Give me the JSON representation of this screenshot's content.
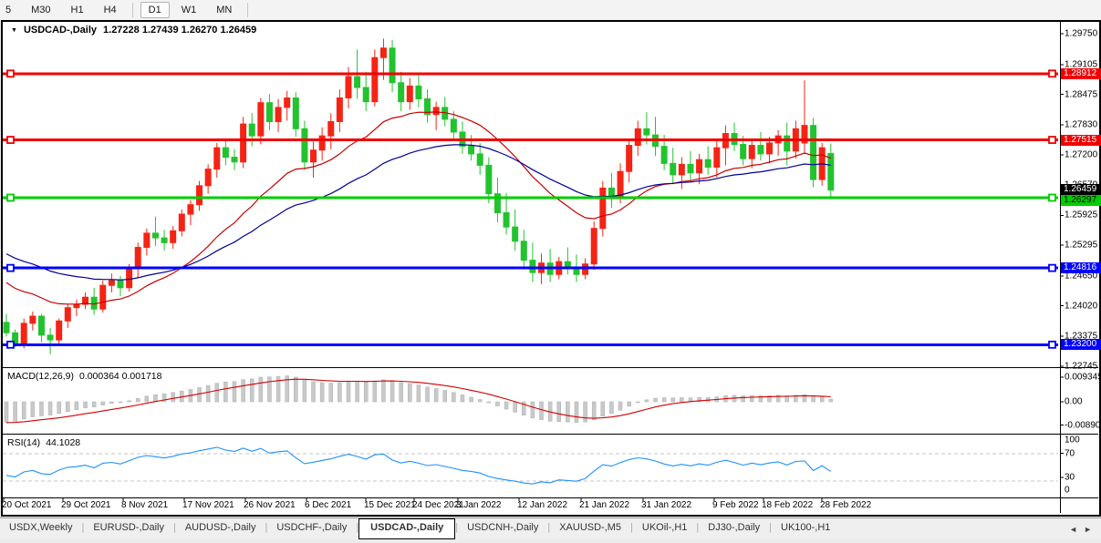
{
  "toolbar": {
    "items": [
      {
        "label": "5"
      },
      {
        "label": "M30"
      },
      {
        "label": "H1"
      },
      {
        "label": "H4"
      },
      {
        "sep": true
      },
      {
        "label": "D1",
        "active": true
      },
      {
        "label": "W1"
      },
      {
        "label": "MN"
      },
      {
        "sep": true
      }
    ]
  },
  "chart": {
    "menu_icon": "▼",
    "symbol": "USDCAD-,Daily",
    "ohlc": "1.27228 1.27439 1.26270 1.26459"
  },
  "chart_data": {
    "type": "candlestick",
    "symbol": "USDCAD-",
    "period": "Daily",
    "current_bar": {
      "open": 1.27228,
      "high": 1.27439,
      "low": 1.2627,
      "close": 1.26459
    },
    "up_color": "#f42415",
    "down_color": "#22c32e",
    "ma_fast_color": "#c80000",
    "ma_slow_color": "#000096",
    "price_ticks": [
      "1.29750",
      "1.29105",
      "1.28475",
      "1.27830",
      "1.27200",
      "1.26570",
      "1.25925",
      "1.25295",
      "1.24650",
      "1.24020",
      "1.23375",
      "1.22745"
    ],
    "hlines": [
      {
        "price": "1.28912",
        "color": "#f00000",
        "text_color": "#ffffff"
      },
      {
        "price": "1.27515",
        "color": "#f00000",
        "text_color": "#ffffff"
      },
      {
        "price": "1.26297",
        "color": "#00cc00",
        "text_color": "#000000"
      },
      {
        "price": "1.24816",
        "color": "#0000ff",
        "text_color": "#ffffff"
      },
      {
        "price": "1.23200",
        "color": "#0000ff",
        "text_color": "#ffffff"
      }
    ],
    "price_badge": {
      "price": "1.26459",
      "bg": "#000000",
      "text_color": "#ffffff"
    },
    "dates": [
      "20 Oct 2021",
      "29 Oct 2021",
      "8 Nov 2021",
      "17 Nov 2021",
      "26 Nov 2021",
      "6 Dec 2021",
      "15 Dec 2021",
      "24 Dec 2021",
      "3 Jan 2022",
      "12 Jan 2022",
      "21 Jan 2022",
      "31 Jan 2022",
      "9 Feb 2022",
      "18 Feb 2022",
      "28 Feb 2022"
    ],
    "candles": [
      [
        1.2367,
        1.2385,
        1.2337,
        1.2345
      ],
      [
        1.2345,
        1.2352,
        1.2315,
        1.2322
      ],
      [
        1.2322,
        1.2375,
        1.2312,
        1.2365
      ],
      [
        1.2365,
        1.239,
        1.235,
        1.238
      ],
      [
        1.238,
        1.2385,
        1.2325,
        1.234
      ],
      [
        1.234,
        1.2355,
        1.23,
        1.233
      ],
      [
        1.233,
        1.2375,
        1.232,
        1.237
      ],
      [
        1.237,
        1.2405,
        1.2355,
        1.2398
      ],
      [
        1.2398,
        1.2415,
        1.238,
        1.2405
      ],
      [
        1.2405,
        1.243,
        1.2395,
        1.242
      ],
      [
        1.242,
        1.244,
        1.2383,
        1.2395
      ],
      [
        1.2395,
        1.2455,
        1.2388,
        1.2445
      ],
      [
        1.2445,
        1.247,
        1.243,
        1.2455
      ],
      [
        1.2455,
        1.2465,
        1.2422,
        1.244
      ],
      [
        1.244,
        1.249,
        1.2432,
        1.248
      ],
      [
        1.248,
        1.2535,
        1.246,
        1.2525
      ],
      [
        1.2525,
        1.2565,
        1.2508,
        1.2555
      ],
      [
        1.2555,
        1.259,
        1.2528,
        1.2545
      ],
      [
        1.2545,
        1.2562,
        1.2518,
        1.2535
      ],
      [
        1.2535,
        1.257,
        1.2522,
        1.256
      ],
      [
        1.256,
        1.2605,
        1.2548,
        1.2595
      ],
      [
        1.2595,
        1.2625,
        1.2572,
        1.2615
      ],
      [
        1.2615,
        1.2665,
        1.2602,
        1.2655
      ],
      [
        1.2655,
        1.27,
        1.2638,
        1.269
      ],
      [
        1.269,
        1.2745,
        1.2672,
        1.2735
      ],
      [
        1.2735,
        1.2755,
        1.2698,
        1.2715
      ],
      [
        1.2715,
        1.2732,
        1.2688,
        1.2705
      ],
      [
        1.2705,
        1.28,
        1.2692,
        1.2785
      ],
      [
        1.2785,
        1.2808,
        1.2738,
        1.276
      ],
      [
        1.276,
        1.284,
        1.2742,
        1.283
      ],
      [
        1.283,
        1.2848,
        1.2772,
        1.279
      ],
      [
        1.279,
        1.2838,
        1.2768,
        1.282
      ],
      [
        1.282,
        1.2855,
        1.2792,
        1.284
      ],
      [
        1.284,
        1.2852,
        1.2758,
        1.2775
      ],
      [
        1.2775,
        1.2792,
        1.2688,
        1.2705
      ],
      [
        1.2705,
        1.2748,
        1.2672,
        1.273
      ],
      [
        1.273,
        1.2778,
        1.2708,
        1.276
      ],
      [
        1.276,
        1.2808,
        1.2732,
        1.279
      ],
      [
        1.279,
        1.2858,
        1.2768,
        1.284
      ],
      [
        1.284,
        1.2905,
        1.2818,
        1.2885
      ],
      [
        1.2885,
        1.2942,
        1.2838,
        1.2862
      ],
      [
        1.2862,
        1.2895,
        1.2812,
        1.2832
      ],
      [
        1.2832,
        1.2942,
        1.2822,
        1.2925
      ],
      [
        1.2925,
        1.2965,
        1.2878,
        1.2945
      ],
      [
        1.2945,
        1.2962,
        1.2852,
        1.2872
      ],
      [
        1.2872,
        1.2895,
        1.2812,
        1.2832
      ],
      [
        1.2832,
        1.2882,
        1.2815,
        1.2865
      ],
      [
        1.2865,
        1.2892,
        1.282,
        1.2838
      ],
      [
        1.2838,
        1.2858,
        1.2788,
        1.2805
      ],
      [
        1.2805,
        1.2832,
        1.2772,
        1.282
      ],
      [
        1.282,
        1.2842,
        1.278,
        1.2795
      ],
      [
        1.2795,
        1.2812,
        1.2752,
        1.2768
      ],
      [
        1.2768,
        1.279,
        1.2722,
        1.2738
      ],
      [
        1.2738,
        1.2762,
        1.2708,
        1.2722
      ],
      [
        1.2722,
        1.2745,
        1.2678,
        1.2698
      ],
      [
        1.2698,
        1.2715,
        1.2618,
        1.2638
      ],
      [
        1.2638,
        1.2672,
        1.2578,
        1.2598
      ],
      [
        1.2598,
        1.264,
        1.2552,
        1.2568
      ],
      [
        1.2568,
        1.2605,
        1.2518,
        1.2538
      ],
      [
        1.2538,
        1.2562,
        1.2478,
        1.2498
      ],
      [
        1.2498,
        1.2535,
        1.2452,
        1.2472
      ],
      [
        1.2472,
        1.2512,
        1.2448,
        1.2492
      ],
      [
        1.2492,
        1.2522,
        1.2452,
        1.2468
      ],
      [
        1.2468,
        1.2505,
        1.2458,
        1.2495
      ],
      [
        1.2495,
        1.2525,
        1.2468,
        1.2482
      ],
      [
        1.2482,
        1.251,
        1.2452,
        1.2468
      ],
      [
        1.2468,
        1.2502,
        1.2458,
        1.249
      ],
      [
        1.249,
        1.258,
        1.2478,
        1.2565
      ],
      [
        1.2565,
        1.2665,
        1.2548,
        1.265
      ],
      [
        1.265,
        1.2682,
        1.2608,
        1.2632
      ],
      [
        1.2632,
        1.2702,
        1.2618,
        1.2685
      ],
      [
        1.2685,
        1.2752,
        1.2662,
        1.274
      ],
      [
        1.274,
        1.2792,
        1.2718,
        1.2775
      ],
      [
        1.2775,
        1.281,
        1.2742,
        1.2762
      ],
      [
        1.2762,
        1.28,
        1.2718,
        1.2738
      ],
      [
        1.2738,
        1.2762,
        1.2688,
        1.2702
      ],
      [
        1.2702,
        1.2735,
        1.2658,
        1.2678
      ],
      [
        1.2678,
        1.2715,
        1.2648,
        1.27
      ],
      [
        1.27,
        1.2728,
        1.2662,
        1.2682
      ],
      [
        1.2682,
        1.2722,
        1.2658,
        1.271
      ],
      [
        1.271,
        1.2738,
        1.2678,
        1.2694
      ],
      [
        1.2694,
        1.2752,
        1.2672,
        1.2735
      ],
      [
        1.2735,
        1.2782,
        1.2698,
        1.2765
      ],
      [
        1.2765,
        1.2788,
        1.2728,
        1.2742
      ],
      [
        1.2742,
        1.276,
        1.2698,
        1.2712
      ],
      [
        1.2712,
        1.2752,
        1.2692,
        1.274
      ],
      [
        1.274,
        1.2768,
        1.2708,
        1.2722
      ],
      [
        1.2722,
        1.2758,
        1.2702,
        1.2745
      ],
      [
        1.2745,
        1.2772,
        1.2718,
        1.276
      ],
      [
        1.276,
        1.2788,
        1.2698,
        1.2728
      ],
      [
        1.2728,
        1.2792,
        1.2712,
        1.2775
      ],
      [
        1.2745,
        1.2877,
        1.2722,
        1.2782
      ],
      [
        1.2782,
        1.2798,
        1.2652,
        1.2668
      ],
      [
        1.2668,
        1.2745,
        1.2655,
        1.2735
      ],
      [
        1.27228,
        1.27439,
        1.2627,
        1.26459
      ]
    ],
    "macd": {
      "name": "MACD(12,26,9)",
      "values": "0.000364 0.001718",
      "fast": 12,
      "slow": 26,
      "signal": 9,
      "axis_ticks": [
        "0.009345",
        "0.00",
        "-0.008903"
      ],
      "hist_color": "#c9c9c9",
      "line_color": "#d40000"
    },
    "rsi": {
      "name": "RSI(14)",
      "value": "44.1028",
      "period": 14,
      "levels": [
        "100",
        "70",
        "30",
        "0"
      ],
      "line_color": "#1e90ff"
    }
  },
  "tabbar": {
    "tabs": [
      {
        "label": "USDX,Weekly"
      },
      {
        "label": "EURUSD-,Daily"
      },
      {
        "label": "AUDUSD-,Daily"
      },
      {
        "label": "USDCHF-,Daily"
      },
      {
        "label": "USDCAD-,Daily",
        "active": true
      },
      {
        "label": "USDCNH-,Daily"
      },
      {
        "label": "XAUUSD-,M5"
      },
      {
        "label": "UKOil-,H1"
      },
      {
        "label": "DJ30-,Daily"
      },
      {
        "label": "UK100-,H1"
      }
    ],
    "scroll_left": "◄",
    "scroll_right": "►"
  }
}
